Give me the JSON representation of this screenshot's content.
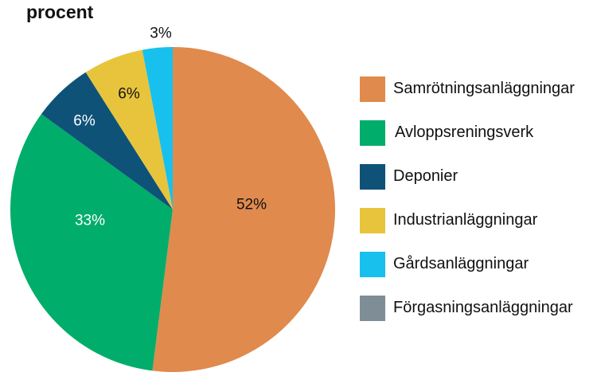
{
  "title": "procent",
  "chart_data": {
    "type": "pie",
    "start_angle": "12 o'clock, clockwise",
    "slices": [
      {
        "name": "Samrötningsanläggningar",
        "value": 52,
        "label": "52%",
        "color": "#e08a4e",
        "label_color": "#111111"
      },
      {
        "name": "Avloppsreningsverk",
        "value": 33,
        "label": "33%",
        "color": "#00ad6a",
        "label_color": "#ffffff"
      },
      {
        "name": "Deponier",
        "value": 6,
        "label": "6%",
        "color": "#0f5278",
        "label_color": "#ffffff"
      },
      {
        "name": "Industrianläggningar",
        "value": 6,
        "label": "6%",
        "color": "#e8c43c",
        "label_color": "#111111"
      },
      {
        "name": "Gårdsanläggningar",
        "value": 3,
        "label": "3%",
        "color": "#18c0ed",
        "label_color": "#111111"
      },
      {
        "name": "Förgasningsanläggningar",
        "value": 0,
        "label": "",
        "color": "#7f8e96",
        "label_color": "#111111"
      }
    ],
    "legend_position": "right"
  }
}
